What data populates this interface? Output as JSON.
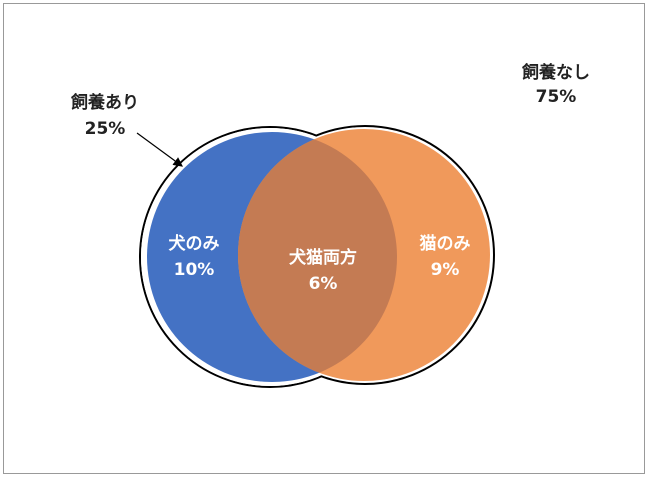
{
  "outer": {
    "yes": {
      "label": "飼養あり",
      "value": "25%"
    },
    "no": {
      "label": "飼養なし",
      "value": "75%"
    }
  },
  "regions": [
    {
      "label": "犬のみ",
      "value": "10%"
    },
    {
      "label": "犬猫両方",
      "value": "6%"
    },
    {
      "label": "猫のみ",
      "value": "9%"
    }
  ]
}
